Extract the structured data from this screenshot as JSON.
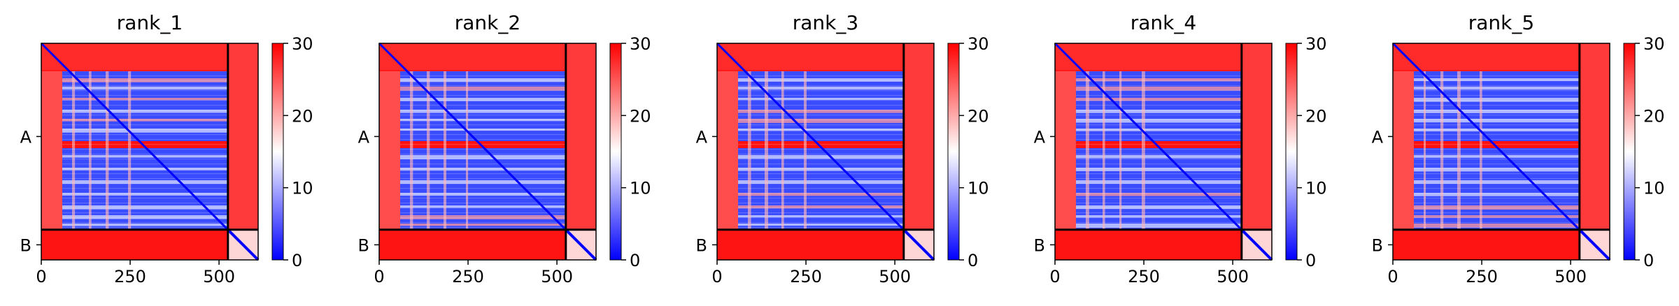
{
  "chart_data": {
    "type": "heatmap",
    "panels": [
      {
        "title": "rank_1"
      },
      {
        "title": "rank_2"
      },
      {
        "title": "rank_3"
      },
      {
        "title": "rank_4"
      },
      {
        "title": "rank_5"
      }
    ],
    "x_ticks": [
      0,
      250,
      500
    ],
    "x_tick_labels": [
      "0",
      "250",
      "500"
    ],
    "xlim": [
      0,
      610
    ],
    "chain_labels": [
      "A",
      "B"
    ],
    "chain_boundary": 525,
    "chain_B_end": 610,
    "colorbar": {
      "min": 0,
      "max": 30,
      "ticks": [
        0,
        10,
        20,
        30
      ],
      "tick_labels": [
        "0",
        "10",
        "20",
        "30"
      ],
      "colormap": "bwr",
      "colors": [
        "#0000ff",
        "#ffffff",
        "#ff0000"
      ]
    },
    "divider_color": "#000000"
  }
}
